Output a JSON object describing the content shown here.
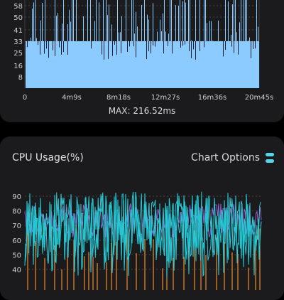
{
  "frame_chart": {
    "max_label": "MAX: 216.52ms",
    "colors": {
      "fill": "#8ccbff",
      "spike": "#0f1a2a",
      "grid": "#444444"
    },
    "chart_data": {
      "type": "bar",
      "y_ticks": [
        "58",
        "50",
        "41",
        "33",
        "25",
        "16",
        "8"
      ],
      "y_tick_values": [
        58,
        50,
        41,
        33,
        25,
        16,
        8
      ],
      "x_ticks": [
        "0",
        "4m9s",
        "8m18s",
        "12m27s",
        "16m36s",
        "20m45s"
      ],
      "x_tick_seconds": [
        0,
        249,
        498,
        747,
        996,
        1245
      ],
      "ylim": [
        0,
        62
      ],
      "baseline_value": 33,
      "grid": true
    }
  },
  "cpu_chart": {
    "title": "CPU Usage(%)",
    "options_label": "Chart Options",
    "options_icon": "toggle-options-icon",
    "colors": {
      "primary": "#25c7d3",
      "secondary": "#9a62d4",
      "accent": "#f08a2e",
      "grid": "#444444"
    },
    "chart_data": {
      "type": "line",
      "y_ticks": [
        "90",
        "80",
        "70",
        "60",
        "50",
        "40"
      ],
      "y_tick_values": [
        90,
        80,
        70,
        60,
        50,
        40
      ],
      "ylim": [
        33,
        95
      ],
      "grid": true
    }
  }
}
